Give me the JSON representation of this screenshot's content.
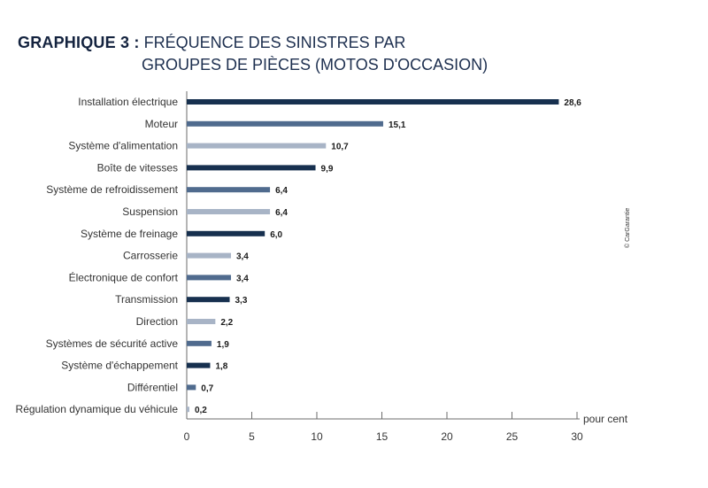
{
  "title": {
    "prefix": "GRAPHIQUE 3 :",
    "line1": "FRÉQUENCE DES SINISTRES PAR",
    "line2": "GROUPES DE PIÈCES (MOTOS D'OCCASION)"
  },
  "credit": "© CarGarantie",
  "colors": {
    "dark": "#17304f",
    "medium": "#506b8e",
    "light": "#a8b4c6",
    "axis": "#6b6b6b"
  },
  "chart_data": {
    "type": "bar",
    "orientation": "horizontal",
    "categories": [
      "Installation électrique",
      "Moteur",
      "Système d'alimentation",
      "Boîte de vitesses",
      "Système de refroidissement",
      "Suspension",
      "Système de freinage",
      "Carrosserie",
      "Électronique de confort",
      "Transmission",
      "Direction",
      "Systèmes de sécurité active",
      "Système d'échappement",
      "Différentiel",
      "Régulation dynamique du véhicule"
    ],
    "values": [
      28.6,
      15.1,
      10.7,
      9.9,
      6.4,
      6.4,
      6.0,
      3.4,
      3.4,
      3.3,
      2.2,
      1.9,
      1.8,
      0.7,
      0.2
    ],
    "value_labels": [
      "28,6",
      "15,1",
      "10,7",
      "9,9",
      "6,4",
      "6,4",
      "6,0",
      "3,4",
      "3,4",
      "3,3",
      "2,2",
      "1,9",
      "1,8",
      "0,7",
      "0,2"
    ],
    "bar_shades": [
      "dark",
      "medium",
      "light",
      "dark",
      "medium",
      "light",
      "dark",
      "light",
      "medium",
      "dark",
      "light",
      "medium",
      "dark",
      "medium",
      "light"
    ],
    "xlim": [
      0,
      30
    ],
    "xticks": [
      0,
      5,
      10,
      15,
      20,
      25,
      30
    ],
    "xlabel": "pour cent",
    "grid": false,
    "legend": "none"
  }
}
